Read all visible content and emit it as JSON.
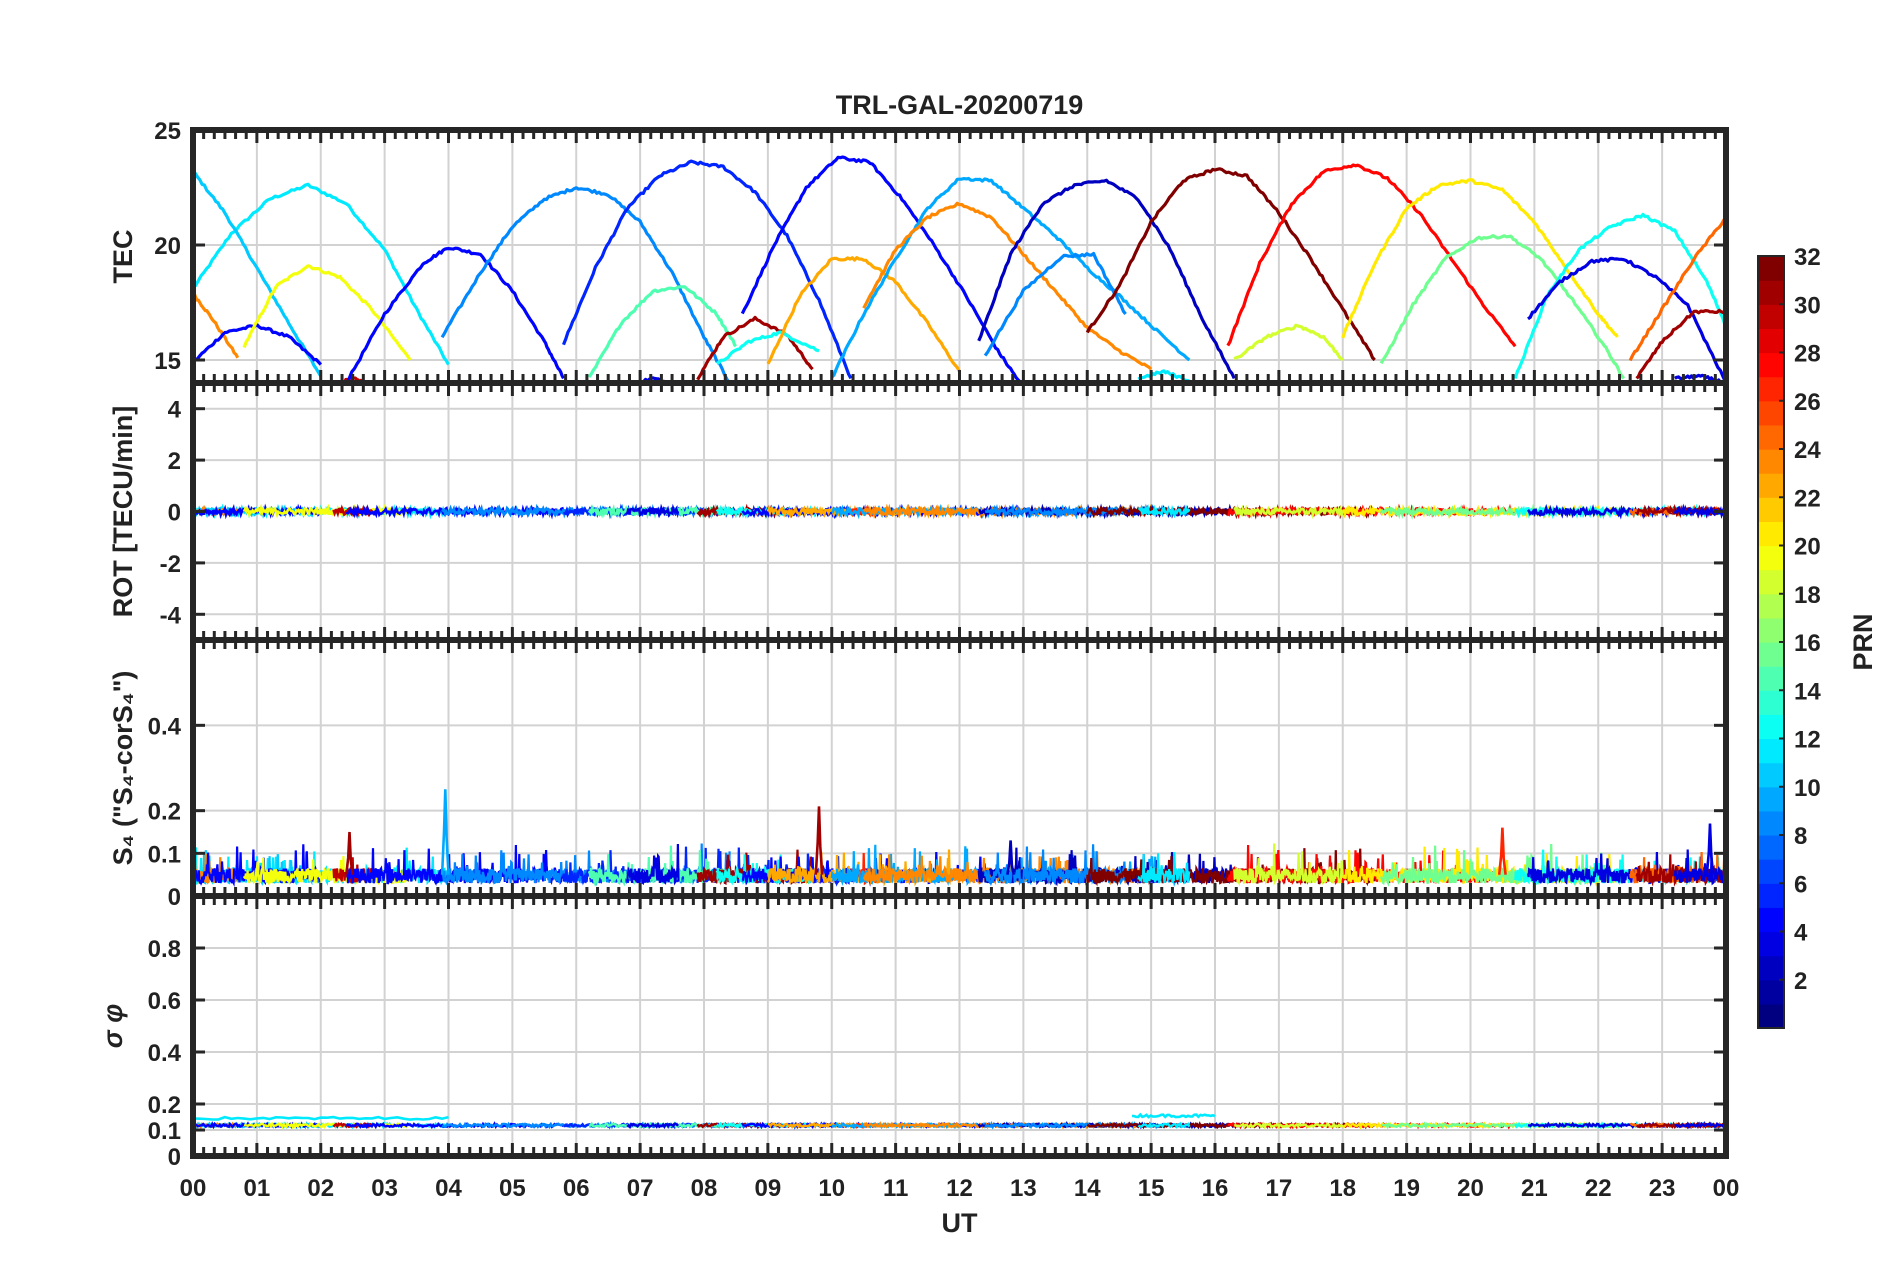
{
  "chart_data": {
    "type": "line",
    "title": "TRL-GAL-20200719",
    "xlabel": "UT",
    "x_ticks": [
      "00",
      "01",
      "02",
      "03",
      "04",
      "05",
      "06",
      "07",
      "08",
      "09",
      "10",
      "11",
      "12",
      "13",
      "14",
      "15",
      "16",
      "17",
      "18",
      "19",
      "20",
      "21",
      "22",
      "23",
      "00"
    ],
    "xlim_hours": [
      0,
      24
    ],
    "grid": true,
    "colorbar": {
      "label": "PRN",
      "range": [
        1,
        32
      ],
      "ticks": [
        "2",
        "4",
        "6",
        "8",
        "10",
        "12",
        "14",
        "16",
        "18",
        "20",
        "22",
        "24",
        "26",
        "28",
        "30",
        "32"
      ],
      "colormap": "jet",
      "placement": "right"
    },
    "panels": [
      {
        "id": "tec",
        "ylabel": "TEC",
        "ylim": [
          14,
          25
        ],
        "yticks": [
          "15",
          "20",
          "25"
        ],
        "series": [
          {
            "prn": 12,
            "x": [
              0.0,
              0.6,
              1.2,
              1.8,
              2.4,
              3.0,
              3.5,
              4.0
            ],
            "y": [
              18.1,
              20.5,
              22.0,
              22.6,
              21.8,
              19.8,
              17.2,
              14.8
            ]
          },
          {
            "prn": 11,
            "x": [
              0.0,
              0.5,
              1.0,
              1.5,
              2.0
            ],
            "y": [
              23.2,
              21.4,
              19.0,
              16.6,
              14.3
            ]
          },
          {
            "prn": 24,
            "x": [
              0.0,
              0.3,
              0.7
            ],
            "y": [
              17.9,
              16.8,
              15.1
            ]
          },
          {
            "prn": 5,
            "x": [
              0.0,
              0.5,
              1.0,
              1.5,
              2.0
            ],
            "y": [
              14.9,
              16.2,
              16.5,
              16.0,
              14.8
            ]
          },
          {
            "prn": 20,
            "x": [
              0.8,
              1.3,
              1.8,
              2.3,
              2.8,
              3.4
            ],
            "y": [
              15.6,
              18.2,
              19.1,
              18.6,
              17.2,
              15.0
            ]
          },
          {
            "prn": 30,
            "x": [
              2.2,
              2.5,
              2.8
            ],
            "y": [
              13.9,
              14.2,
              13.9
            ]
          },
          {
            "prn": 5,
            "x": [
              2.4,
              3.0,
              3.6,
              4.0,
              4.5,
              5.0,
              5.5,
              5.8
            ],
            "y": [
              14.0,
              17.0,
              19.2,
              19.9,
              19.6,
              18.0,
              15.8,
              14.2
            ]
          },
          {
            "prn": 9,
            "x": [
              3.9,
              4.5,
              5.0,
              5.5,
              6.0,
              6.5,
              7.0,
              7.5,
              8.0,
              8.4
            ],
            "y": [
              16.0,
              18.8,
              20.8,
              22.0,
              22.5,
              22.2,
              21.0,
              18.8,
              16.0,
              14.0
            ]
          },
          {
            "prn": 6,
            "x": [
              5.8,
              6.3,
              6.8,
              7.3,
              7.8,
              8.3,
              8.8,
              9.3,
              9.8,
              10.3
            ],
            "y": [
              15.7,
              19.0,
              21.6,
              23.0,
              23.6,
              23.4,
              22.3,
              20.4,
              17.6,
              14.2
            ]
          },
          {
            "prn": 15,
            "x": [
              6.2,
              6.7,
              7.2,
              7.7,
              8.2,
              8.5
            ],
            "y": [
              14.2,
              16.6,
              18.0,
              18.2,
              17.0,
              15.6
            ]
          },
          {
            "prn": 4,
            "x": [
              6.8,
              7.2,
              7.6
            ],
            "y": [
              13.9,
              14.2,
              13.9
            ]
          },
          {
            "prn": 31,
            "x": [
              7.9,
              8.3,
              8.8,
              9.3,
              9.7
            ],
            "y": [
              14.2,
              16.0,
              16.8,
              16.1,
              14.6
            ]
          },
          {
            "prn": 13,
            "x": [
              8.2,
              8.7,
              9.2,
              9.8
            ],
            "y": [
              14.8,
              15.8,
              16.2,
              15.4
            ]
          },
          {
            "prn": 5,
            "x": [
              8.6,
              9.1,
              9.6,
              10.1,
              10.6,
              11.1,
              11.6,
              12.1,
              12.6,
              13.0
            ],
            "y": [
              17.0,
              20.0,
              22.5,
              23.8,
              23.6,
              22.0,
              20.0,
              17.8,
              15.4,
              13.8
            ]
          },
          {
            "prn": 23,
            "x": [
              9.0,
              9.5,
              10.0,
              10.5,
              11.0,
              11.5,
              12.0
            ],
            "y": [
              14.8,
              17.8,
              19.4,
              19.4,
              18.4,
              16.6,
              14.5
            ]
          },
          {
            "prn": 27,
            "x": [
              10.3,
              10.5,
              10.7
            ],
            "y": [
              14.0,
              14.0,
              13.9
            ]
          },
          {
            "prn": 10,
            "x": [
              10.0,
              10.5,
              11.0,
              11.5,
              12.0,
              12.5,
              13.0,
              13.5,
              14.0,
              14.5,
              15.0,
              15.6
            ],
            "y": [
              14.2,
              17.0,
              19.4,
              21.6,
              22.9,
              22.8,
              21.6,
              20.4,
              19.0,
              17.8,
              16.5,
              15.0
            ]
          },
          {
            "prn": 24,
            "x": [
              10.5,
              11.0,
              11.5,
              12.0,
              12.5,
              13.0,
              13.5,
              14.0,
              14.5,
              15.0
            ],
            "y": [
              17.3,
              19.8,
              21.2,
              21.8,
              21.2,
              19.6,
              18.0,
              16.4,
              15.4,
              14.6
            ]
          },
          {
            "prn": 3,
            "x": [
              12.3,
              12.8,
              13.3,
              13.8,
              14.3,
              14.8,
              15.3,
              15.8,
              16.3
            ],
            "y": [
              15.8,
              19.6,
              21.8,
              22.6,
              22.8,
              22.0,
              19.8,
              16.8,
              14.2
            ]
          },
          {
            "prn": 9,
            "x": [
              12.4,
              13.0,
              13.6,
              14.1,
              14.6
            ],
            "y": [
              15.2,
              18.0,
              19.5,
              19.6,
              17.0
            ]
          },
          {
            "prn": 32,
            "x": [
              14.0,
              14.5,
              15.0,
              15.5,
              16.0,
              16.5,
              17.0,
              17.5,
              18.0,
              18.5
            ],
            "y": [
              16.2,
              18.2,
              21.0,
              22.8,
              23.3,
              23.0,
              21.4,
              19.4,
              17.2,
              15.0
            ]
          },
          {
            "prn": 12,
            "x": [
              14.8,
              15.2,
              15.6
            ],
            "y": [
              14.2,
              14.5,
              14.1
            ]
          },
          {
            "prn": 28,
            "x": [
              16.2,
              16.7,
              17.2,
              17.7,
              18.2,
              18.7,
              19.2,
              19.7,
              20.2,
              20.7
            ],
            "y": [
              15.6,
              19.2,
              21.8,
              23.2,
              23.5,
              22.9,
              21.4,
              19.4,
              17.4,
              15.6
            ]
          },
          {
            "prn": 19,
            "x": [
              16.3,
              16.8,
              17.3,
              17.7,
              18.0
            ],
            "y": [
              15.0,
              16.0,
              16.5,
              16.0,
              15.0
            ]
          },
          {
            "prn": 21,
            "x": [
              18.0,
              18.5,
              19.0,
              19.5,
              20.0,
              20.5,
              21.0,
              21.5,
              22.0,
              22.3
            ],
            "y": [
              16.0,
              19.2,
              21.6,
              22.6,
              22.8,
              22.4,
              21.0,
              19.0,
              17.0,
              16.0
            ]
          },
          {
            "prn": 16,
            "x": [
              18.6,
              19.1,
              19.6,
              20.1,
              20.6,
              21.1,
              21.6,
              22.1,
              22.4
            ],
            "y": [
              14.8,
              17.4,
              19.4,
              20.3,
              20.4,
              19.4,
              17.6,
              15.6,
              14.2
            ]
          },
          {
            "prn": 13,
            "x": [
              20.7,
              21.2,
              21.7,
              22.2,
              22.7,
              23.2,
              23.7,
              24.0
            ],
            "y": [
              14.2,
              17.8,
              19.8,
              20.8,
              21.3,
              20.6,
              18.4,
              16.5
            ]
          },
          {
            "prn": 4,
            "x": [
              20.9,
              21.4,
              21.9,
              22.4,
              22.9,
              23.4,
              24.0
            ],
            "y": [
              16.8,
              18.4,
              19.3,
              19.4,
              18.6,
              17.4,
              14.0
            ]
          },
          {
            "prn": 25,
            "x": [
              22.5,
              23.0,
              23.5,
              24.0
            ],
            "y": [
              15.0,
              17.2,
              19.4,
              21.2
            ]
          },
          {
            "prn": 31,
            "x": [
              22.6,
              23.0,
              23.5,
              24.0
            ],
            "y": [
              14.2,
              15.8,
              17.1,
              17.1
            ]
          },
          {
            "prn": 4,
            "x": [
              23.2,
              23.6,
              24.0
            ],
            "y": [
              14.2,
              14.3,
              14.0
            ]
          }
        ]
      },
      {
        "id": "rot",
        "ylabel": "ROT [TECU/min]",
        "ylim": [
          -5,
          5
        ],
        "yticks": [
          "-4",
          "-2",
          "0",
          "2",
          "4"
        ],
        "note": "all satellites ~0 TECU/min with noise amplitude ~0.1"
      },
      {
        "id": "s4",
        "ylabel": "S₄ (\"S₄-corS₄\")",
        "ylim": [
          0,
          0.6
        ],
        "yticks": [
          "0",
          "0.1",
          "0.2",
          "0.4"
        ],
        "note": "background 0.02-0.07 with spikes",
        "spikes": [
          {
            "prn": 31,
            "x": 2.45,
            "y": 0.15
          },
          {
            "prn": 10,
            "x": 3.95,
            "y": 0.25
          },
          {
            "prn": 31,
            "x": 9.8,
            "y": 0.21
          },
          {
            "prn": 3,
            "x": 12.8,
            "y": 0.13
          },
          {
            "prn": 27,
            "x": 20.5,
            "y": 0.16
          },
          {
            "prn": 4,
            "x": 23.75,
            "y": 0.17
          }
        ]
      },
      {
        "id": "sigma",
        "ylabel": "σ φ",
        "ylim": [
          0,
          1
        ],
        "yticks": [
          "0",
          "0.1",
          "0.2",
          "0.4",
          "0.6",
          "0.8"
        ],
        "note": "~0.12 flat for all satellites",
        "segments": [
          {
            "prn": 12,
            "x": [
              0,
              4
            ],
            "y": 0.145
          },
          {
            "prn": 12,
            "x": [
              14.7,
              16.0
            ],
            "y": 0.155
          }
        ]
      }
    ]
  }
}
